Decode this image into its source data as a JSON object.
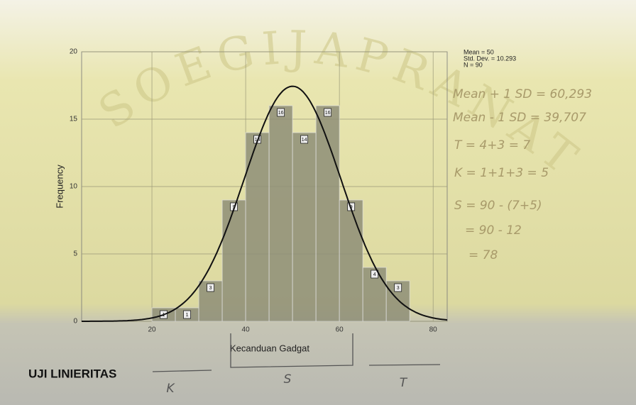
{
  "chart_data": {
    "type": "histogram",
    "x_label": "Kecanduan Gadgat",
    "y_label": "Frequency",
    "bins": [
      20,
      25,
      30,
      35,
      40,
      45,
      50,
      55,
      60,
      65,
      70,
      75
    ],
    "values": [
      1,
      1,
      3,
      9,
      14,
      16,
      14,
      16,
      9,
      4,
      3
    ],
    "color": "#8f8f78",
    "xlim": [
      5,
      83
    ],
    "xticks": [
      20,
      40,
      60,
      80
    ],
    "ylim": [
      0,
      20
    ],
    "yticks": [
      0,
      5,
      10,
      15,
      20
    ],
    "grid": true,
    "stats": [
      {
        "value": 50,
        "label": "Mean = 50"
      },
      {
        "value": 10.293,
        "label": "Std. Dev. = 10.293"
      },
      {
        "value": 90,
        "label": "N = 90"
      }
    ],
    "watermark": "SOEGIJAPRANATA",
    "notes": [
      "Mean + 1 SD = 60,293",
      "Mean - 1 SD = 39,707",
      "T = 4+3 = 7",
      "K = 1+1+3 = 5",
      "S = 90 - (7+5)",
      "= 90 - 12",
      "= 78"
    ],
    "heading": "UJI LINIERITAS",
    "groups": [
      "K",
      "S",
      "T"
    ]
  }
}
